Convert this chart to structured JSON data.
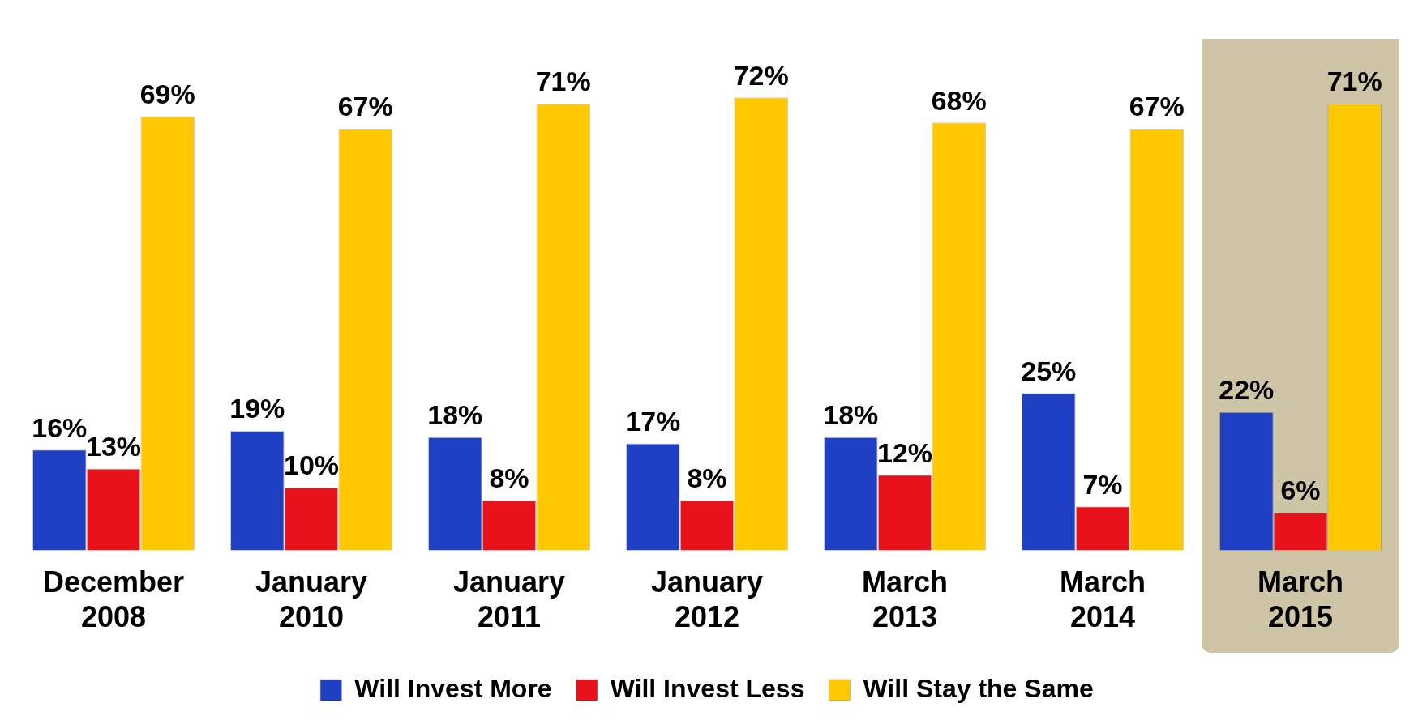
{
  "chart_data": {
    "type": "bar",
    "categories": [
      "December 2008",
      "January 2010",
      "January 2011",
      "January 2012",
      "March 2013",
      "March 2014",
      "March 2015"
    ],
    "series": [
      {
        "name": "Will Invest More",
        "color": "#1f3fc4",
        "values": [
          16,
          19,
          18,
          17,
          18,
          25,
          22
        ],
        "value_labels": [
          "16%",
          "19%",
          "18%",
          "17%",
          "18%",
          "25%",
          "22%"
        ]
      },
      {
        "name": "Will Invest Less",
        "color": "#e8121b",
        "values": [
          13,
          10,
          8,
          8,
          12,
          7,
          6
        ],
        "value_labels": [
          "13%",
          "10%",
          "8%",
          "8%",
          "12%",
          "7%",
          "6%"
        ]
      },
      {
        "name": "Will Stay the Same",
        "color": "#ffc800",
        "values": [
          69,
          67,
          71,
          72,
          68,
          67,
          71
        ],
        "value_labels": [
          "69%",
          "67%",
          "71%",
          "72%",
          "68%",
          "67%",
          "71%"
        ]
      }
    ],
    "bands": [
      {
        "axis": "x",
        "from": "March 2015",
        "to": "March 2015",
        "color": "#cdc5a5"
      }
    ],
    "legend": "bottom",
    "grid": false
  }
}
